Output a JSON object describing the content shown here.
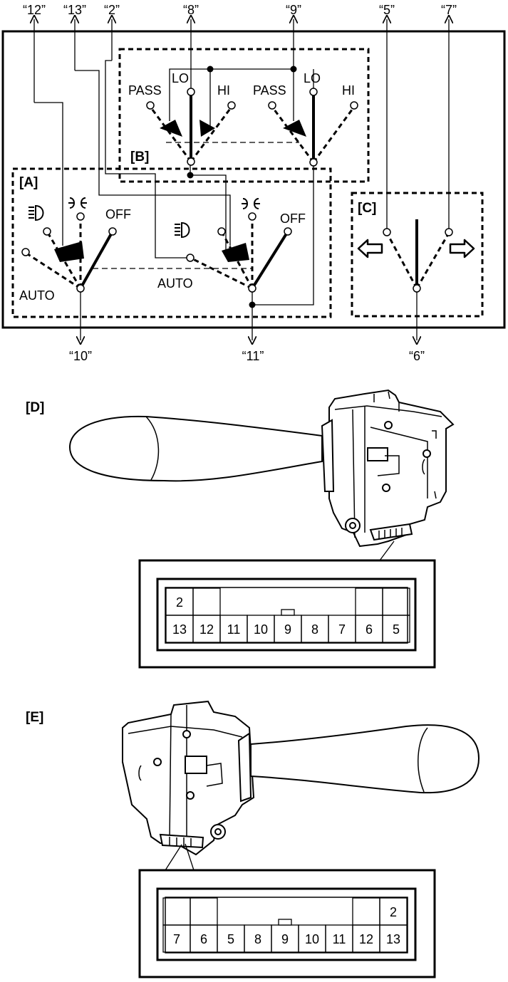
{
  "switch_diagram": {
    "wire_labels": {
      "w12": "“12”",
      "w13": "“13”",
      "w2": "“2”",
      "w8": "“8”",
      "w9": "“9”",
      "w5": "“5”",
      "w7": "“7”",
      "w10": "“10”",
      "w11": "“11”",
      "w6": "“6”"
    },
    "section_labels": {
      "a": "[A]",
      "b": "[B]",
      "c": "[C]"
    },
    "dimmer_positions": {
      "pass": "PASS",
      "lo": "LO",
      "hi": "HI"
    },
    "light_positions": {
      "auto": "AUTO",
      "off": "OFF",
      "headlight_icon": "headlight-icon",
      "tail_light_icon": "tail-light-icon"
    },
    "turn_icons": {
      "left": "left-arrow-icon",
      "right": "right-arrow-icon"
    }
  },
  "view_d": {
    "label": "[D]",
    "connector": {
      "top_row": [
        "2",
        "",
        "",
        ""
      ],
      "bottom_row": [
        "13",
        "12",
        "11",
        "10",
        "9",
        "8",
        "7",
        "6",
        "5"
      ]
    }
  },
  "view_e": {
    "label": "[E]",
    "connector": {
      "top_row": [
        "",
        "",
        "",
        "2"
      ],
      "bottom_row": [
        "7",
        "6",
        "5",
        "8",
        "9",
        "10",
        "11",
        "12",
        "13"
      ]
    }
  }
}
